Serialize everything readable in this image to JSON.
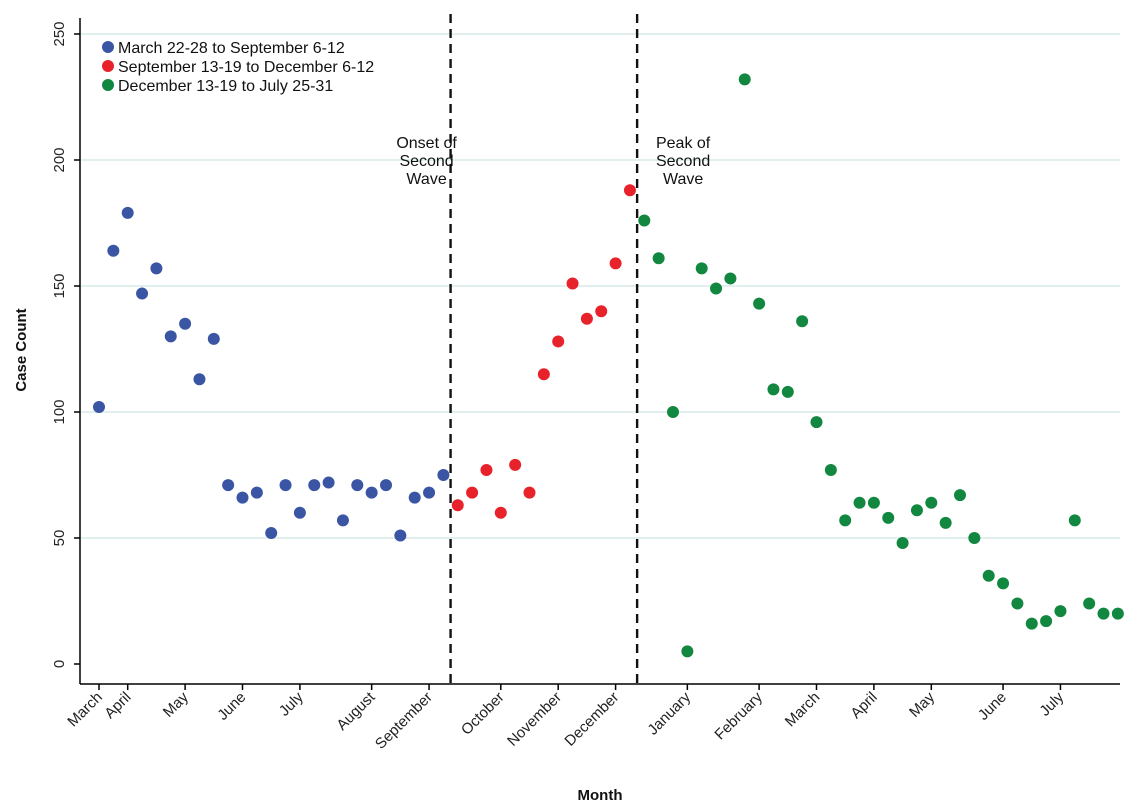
{
  "chart_data": {
    "type": "scatter",
    "title": "",
    "xlabel": "Month",
    "ylabel": "Case Count",
    "ylim": [
      0,
      250
    ],
    "yticks": [
      0,
      50,
      100,
      150,
      200,
      250
    ],
    "grid": "horizontal",
    "legend_position": "top-left",
    "x_ticks": [
      {
        "label": "March",
        "week": 0
      },
      {
        "label": "April",
        "week": 2
      },
      {
        "label": "May",
        "week": 6
      },
      {
        "label": "June",
        "week": 10
      },
      {
        "label": "July",
        "week": 14
      },
      {
        "label": "August",
        "week": 19
      },
      {
        "label": "September",
        "week": 23
      },
      {
        "label": "October",
        "week": 28
      },
      {
        "label": "November",
        "week": 32
      },
      {
        "label": "December",
        "week": 36
      },
      {
        "label": "January",
        "week": 41
      },
      {
        "label": "February",
        "week": 46
      },
      {
        "label": "March",
        "week": 50
      },
      {
        "label": "April",
        "week": 54
      },
      {
        "label": "May",
        "week": 58
      },
      {
        "label": "June",
        "week": 63
      },
      {
        "label": "July",
        "week": 67
      }
    ],
    "vlines": [
      {
        "week": 24.5,
        "label": [
          "Onset of",
          "Second",
          "Wave"
        ],
        "label_side": "left"
      },
      {
        "week": 37.5,
        "label": [
          "Peak of",
          "Second",
          "Wave"
        ],
        "label_side": "right"
      }
    ],
    "series": [
      {
        "name": "March 22-28 to September 6-12",
        "color": "#3a55a4",
        "x": [
          0,
          1,
          2,
          3,
          4,
          5,
          6,
          7,
          8,
          9,
          10,
          11,
          12,
          13,
          14,
          15,
          16,
          17,
          18,
          19,
          20,
          21,
          22,
          23,
          24
        ],
        "y": [
          102,
          164,
          179,
          147,
          157,
          130,
          135,
          113,
          129,
          71,
          66,
          68,
          52,
          71,
          60,
          71,
          72,
          57,
          71,
          68,
          71,
          51,
          66,
          68,
          75
        ]
      },
      {
        "name": "September 13-19 to December 6-12",
        "color": "#e8222a",
        "x": [
          25,
          26,
          27,
          28,
          29,
          30,
          31,
          32,
          33,
          34,
          35,
          36,
          37
        ],
        "y": [
          63,
          68,
          77,
          60,
          79,
          68,
          115,
          128,
          151,
          137,
          140,
          159,
          188
        ]
      },
      {
        "name": "December 13-19 to July 25-31",
        "color": "#12873f",
        "x": [
          38,
          39,
          40,
          41,
          42,
          43,
          44,
          45,
          46,
          47,
          48,
          49,
          50,
          51,
          52,
          53,
          54,
          55,
          56,
          57,
          58,
          59,
          60,
          61,
          62,
          63,
          64,
          65,
          66,
          67,
          68,
          69,
          70,
          71
        ],
        "y": [
          176,
          161,
          100,
          5,
          157,
          149,
          153,
          232,
          143,
          109,
          108,
          136,
          96,
          77,
          57,
          64,
          64,
          58,
          48,
          61,
          64,
          56,
          67,
          50,
          35,
          32,
          24,
          16,
          17,
          21,
          57,
          24,
          20,
          20
        ]
      }
    ]
  }
}
